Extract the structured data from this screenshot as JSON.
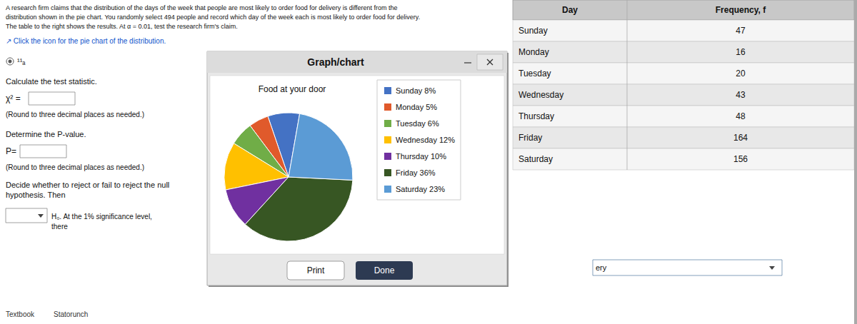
{
  "chart_data": {
    "type": "pie",
    "title": "Food at your door",
    "categories": [
      "Sunday 8%",
      "Monday 5%",
      "Tuesday 6%",
      "Wednesday 12%",
      "Thursday 10%",
      "Friday 36%",
      "Saturday 23%"
    ],
    "values": [
      8,
      5,
      6,
      12,
      10,
      36,
      23
    ],
    "colors": [
      "#4472C4",
      "#E05A2B",
      "#70AD47",
      "#FFC000",
      "#7030A0",
      "#375623",
      "#5B9BD5"
    ],
    "legend": "right",
    "annotations": [
      "A research firm claims that the distribution of the days of the week that people are most likely to order food for delivery is different from the",
      "distribution shown in the pie chart. You randomly select 494 people and record which day of the week each is most likely to order food for delivery.",
      "The table to the right shows the results. At α = 0.01, test the research firm's claim.",
      "↗ Click the icon for the pie chart of the distribution.",
      "¹¹ₐ",
      "Calculate the test statistic.",
      "χ² =",
      "(Round to three decimal places as needed.)",
      "Determine the P-value.",
      "P=",
      "(Round to three decimal places as needed.)",
      "Decide whether to reject or fail to reject the null hypothesis. Then",
      "H₀. At the 1% significance level, there",
      "Graph/chart",
      "Print",
      "Done",
      "ery",
      "Textbook",
      "Statorunch"
    ],
    "table": {
      "headers": [
        "Day",
        "Frequency, f"
      ],
      "rows": [
        [
          "Sunday",
          "47"
        ],
        [
          "Monday",
          "16"
        ],
        [
          "Tuesday",
          "20"
        ],
        [
          "Wednesday",
          "43"
        ],
        [
          "Thursday",
          "48"
        ],
        [
          "Friday",
          "164"
        ],
        [
          "Saturday",
          "156"
        ]
      ]
    }
  }
}
